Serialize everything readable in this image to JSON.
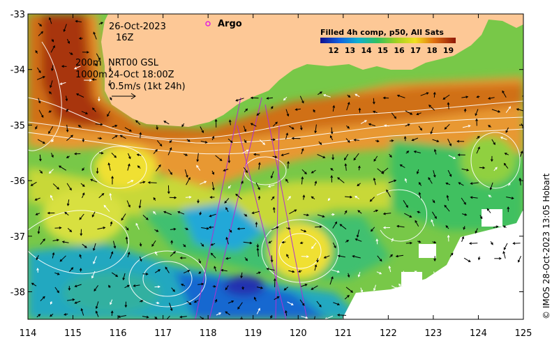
{
  "map": {
    "date_line1": "26-Oct-2023",
    "date_line2": "16Z",
    "contour_200": "200m",
    "contour_1000": "1000m",
    "current_source": "NRT00 GSL",
    "current_time": "24-Oct 18:00Z",
    "arrow_scale": "0.5m/s (1kt 24h)",
    "argo_label": "Argo",
    "colorbar_title": "Filled 4h comp, p50, All Sats",
    "colorbar_ticks": [
      "12",
      "13",
      "14",
      "15",
      "16",
      "17",
      "18",
      "19"
    ],
    "credit": "© IMOS 28-Oct-2023 13:05 Hobart",
    "x_ticks": [
      "114",
      "115",
      "116",
      "117",
      "118",
      "119",
      "120",
      "121",
      "122",
      "123",
      "124",
      "125"
    ],
    "y_ticks": [
      "-33",
      "-34",
      "-35",
      "-36",
      "-37",
      "-38"
    ],
    "colors": {
      "land": "#fdc896",
      "argo": "#e020e0",
      "track": "#b030d0",
      "contour": "#ffffff",
      "sst_cold": "#1020b0",
      "sst_warm": "#a02808"
    },
    "icons": [
      "argo-float-marker",
      "current-vector-arrows",
      "scale-arrow"
    ]
  }
}
